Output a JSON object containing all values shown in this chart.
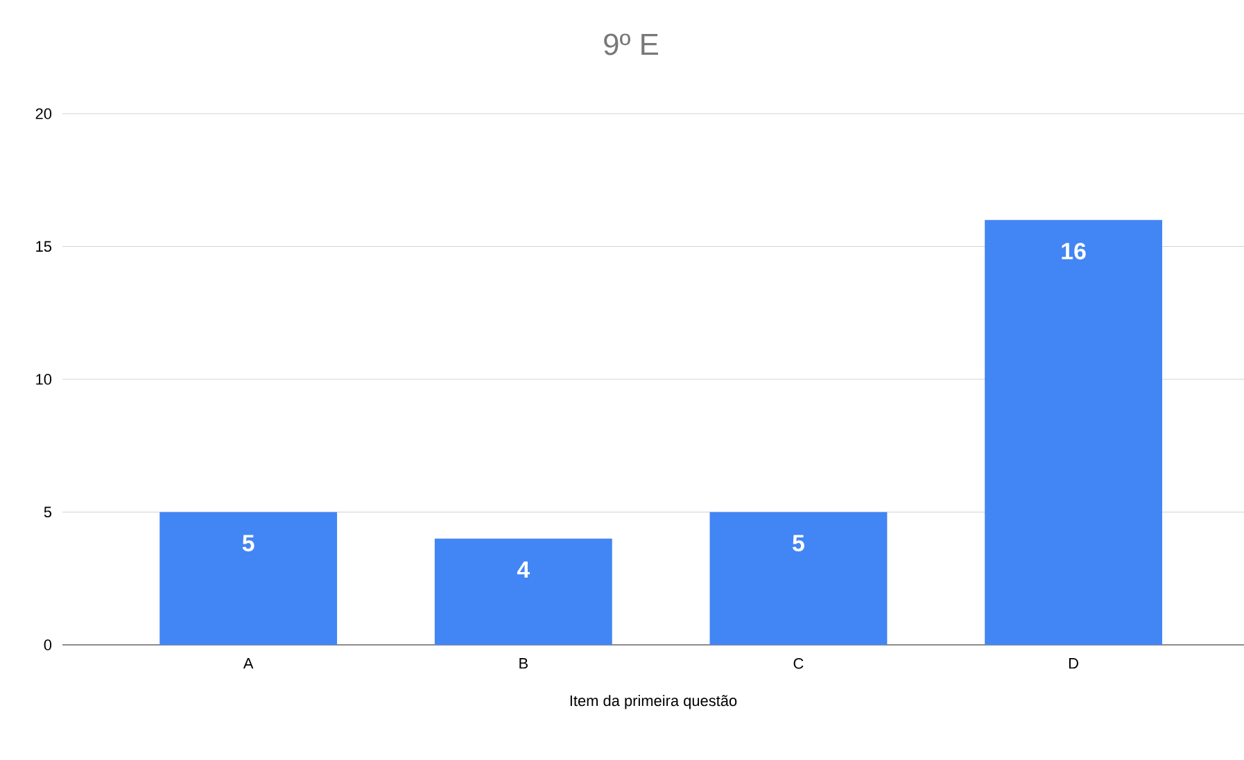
{
  "chart_data": {
    "type": "bar",
    "title": "9º E",
    "xlabel": "Item da primeira questão",
    "categories": [
      "A",
      "B",
      "C",
      "D"
    ],
    "values": [
      5,
      4,
      5,
      16
    ],
    "color": "#4285f4",
    "ylim": [
      0,
      20
    ],
    "yticks": [
      0,
      5,
      10,
      15,
      20
    ],
    "grid": "y",
    "data_labels": true
  }
}
